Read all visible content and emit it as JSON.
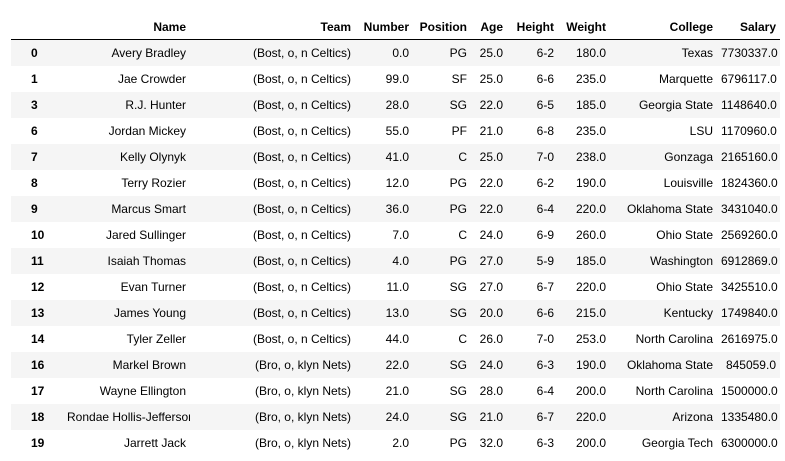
{
  "table": {
    "index_header": "",
    "columns": [
      "Name",
      "Team",
      "Number",
      "Position",
      "Age",
      "Height",
      "Weight",
      "College",
      "Salary"
    ],
    "rows": [
      {
        "index": "0",
        "cells": [
          "Avery Bradley",
          "(Bost, o, n Celtics)",
          "0.0",
          "PG",
          "25.0",
          "6-2",
          "180.0",
          "Texas",
          "7730337.0"
        ]
      },
      {
        "index": "1",
        "cells": [
          "Jae Crowder",
          "(Bost, o, n Celtics)",
          "99.0",
          "SF",
          "25.0",
          "6-6",
          "235.0",
          "Marquette",
          "6796117.0"
        ]
      },
      {
        "index": "3",
        "cells": [
          "R.J. Hunter",
          "(Bost, o, n Celtics)",
          "28.0",
          "SG",
          "22.0",
          "6-5",
          "185.0",
          "Georgia State",
          "1148640.0"
        ]
      },
      {
        "index": "6",
        "cells": [
          "Jordan Mickey",
          "(Bost, o, n Celtics)",
          "55.0",
          "PF",
          "21.0",
          "6-8",
          "235.0",
          "LSU",
          "1170960.0"
        ]
      },
      {
        "index": "7",
        "cells": [
          "Kelly Olynyk",
          "(Bost, o, n Celtics)",
          "41.0",
          "C",
          "25.0",
          "7-0",
          "238.0",
          "Gonzaga",
          "2165160.0"
        ]
      },
      {
        "index": "8",
        "cells": [
          "Terry Rozier",
          "(Bost, o, n Celtics)",
          "12.0",
          "PG",
          "22.0",
          "6-2",
          "190.0",
          "Louisville",
          "1824360.0"
        ]
      },
      {
        "index": "9",
        "cells": [
          "Marcus Smart",
          "(Bost, o, n Celtics)",
          "36.0",
          "PG",
          "22.0",
          "6-4",
          "220.0",
          "Oklahoma State",
          "3431040.0"
        ]
      },
      {
        "index": "10",
        "cells": [
          "Jared Sullinger",
          "(Bost, o, n Celtics)",
          "7.0",
          "C",
          "24.0",
          "6-9",
          "260.0",
          "Ohio State",
          "2569260.0"
        ]
      },
      {
        "index": "11",
        "cells": [
          "Isaiah Thomas",
          "(Bost, o, n Celtics)",
          "4.0",
          "PG",
          "27.0",
          "5-9",
          "185.0",
          "Washington",
          "6912869.0"
        ]
      },
      {
        "index": "12",
        "cells": [
          "Evan Turner",
          "(Bost, o, n Celtics)",
          "11.0",
          "SG",
          "27.0",
          "6-7",
          "220.0",
          "Ohio State",
          "3425510.0"
        ]
      },
      {
        "index": "13",
        "cells": [
          "James Young",
          "(Bost, o, n Celtics)",
          "13.0",
          "SG",
          "20.0",
          "6-6",
          "215.0",
          "Kentucky",
          "1749840.0"
        ]
      },
      {
        "index": "14",
        "cells": [
          "Tyler Zeller",
          "(Bost, o, n Celtics)",
          "44.0",
          "C",
          "26.0",
          "7-0",
          "253.0",
          "North Carolina",
          "2616975.0"
        ]
      },
      {
        "index": "16",
        "cells": [
          "Markel Brown",
          "(Bro, o, klyn Nets)",
          "22.0",
          "SG",
          "24.0",
          "6-3",
          "190.0",
          "Oklahoma State",
          "845059.0"
        ]
      },
      {
        "index": "17",
        "cells": [
          "Wayne Ellington",
          "(Bro, o, klyn Nets)",
          "21.0",
          "SG",
          "28.0",
          "6-4",
          "200.0",
          "North Carolina",
          "1500000.0"
        ]
      },
      {
        "index": "18",
        "cells": [
          "Rondae Hollis-Jefferson",
          "(Bro, o, klyn Nets)",
          "24.0",
          "SG",
          "21.0",
          "6-7",
          "220.0",
          "Arizona",
          "1335480.0"
        ]
      },
      {
        "index": "19",
        "cells": [
          "Jarrett Jack",
          "(Bro, o, klyn Nets)",
          "2.0",
          "PG",
          "32.0",
          "6-3",
          "200.0",
          "Georgia Tech",
          "6300000.0"
        ]
      }
    ]
  }
}
